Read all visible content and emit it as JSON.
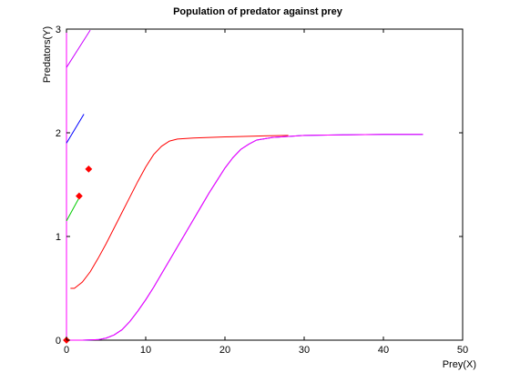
{
  "chart_data": {
    "type": "line",
    "title": "Population of predator against prey",
    "xlabel": "Prey(X)",
    "ylabel": "Predators(Y)",
    "xlim": [
      0,
      50
    ],
    "ylim": [
      0,
      3
    ],
    "xticks": [
      0,
      10,
      20,
      30,
      40,
      50
    ],
    "yticks": [
      0,
      1,
      2,
      3
    ],
    "grid": false,
    "series": [
      {
        "color": "#ff00ff",
        "points": [
          [
            0,
            0
          ],
          [
            0,
            3
          ]
        ]
      },
      {
        "color": "#ff0000",
        "points": [
          [
            0.5,
            0.5
          ],
          [
            1,
            0.5
          ],
          [
            2,
            0.56
          ],
          [
            3,
            0.66
          ],
          [
            4,
            0.79
          ],
          [
            5,
            0.93
          ],
          [
            6,
            1.08
          ],
          [
            7,
            1.23
          ],
          [
            8,
            1.38
          ],
          [
            9,
            1.53
          ],
          [
            10,
            1.67
          ],
          [
            11,
            1.79
          ],
          [
            12,
            1.87
          ],
          [
            13,
            1.92
          ],
          [
            14,
            1.94
          ],
          [
            16,
            1.95
          ],
          [
            20,
            1.96
          ],
          [
            25,
            1.97
          ],
          [
            28,
            1.975
          ]
        ]
      },
      {
        "color": "#0000ff",
        "points": [
          [
            0,
            0
          ],
          [
            2,
            0
          ],
          [
            4,
            0.005
          ],
          [
            5,
            0.02
          ],
          [
            6,
            0.05
          ],
          [
            7,
            0.1
          ],
          [
            8,
            0.18
          ],
          [
            9,
            0.28
          ],
          [
            10,
            0.39
          ],
          [
            11,
            0.51
          ],
          [
            12,
            0.64
          ],
          [
            13,
            0.77
          ],
          [
            14,
            0.9
          ],
          [
            15,
            1.03
          ],
          [
            16,
            1.16
          ],
          [
            17,
            1.29
          ],
          [
            18,
            1.42
          ],
          [
            19,
            1.54
          ],
          [
            20,
            1.66
          ],
          [
            21,
            1.76
          ],
          [
            22,
            1.84
          ],
          [
            23,
            1.89
          ],
          [
            24,
            1.93
          ],
          [
            26,
            1.955
          ],
          [
            28,
            1.965
          ],
          [
            30,
            1.975
          ],
          [
            35,
            1.98
          ],
          [
            40,
            1.985
          ],
          [
            45,
            1.985
          ]
        ]
      },
      {
        "color": "#ff00ff",
        "points": [
          [
            0,
            0
          ],
          [
            2,
            0
          ],
          [
            4,
            0.005
          ],
          [
            5,
            0.02
          ],
          [
            6,
            0.05
          ],
          [
            7,
            0.1
          ],
          [
            8,
            0.18
          ],
          [
            9,
            0.28
          ],
          [
            10,
            0.39
          ],
          [
            11,
            0.51
          ],
          [
            12,
            0.64
          ],
          [
            13,
            0.77
          ],
          [
            14,
            0.9
          ],
          [
            15,
            1.03
          ],
          [
            16,
            1.16
          ],
          [
            17,
            1.29
          ],
          [
            18,
            1.42
          ],
          [
            19,
            1.54
          ],
          [
            20,
            1.66
          ],
          [
            21,
            1.76
          ],
          [
            22,
            1.84
          ],
          [
            23,
            1.89
          ],
          [
            24,
            1.93
          ],
          [
            26,
            1.955
          ],
          [
            28,
            1.965
          ],
          [
            30,
            1.975
          ],
          [
            35,
            1.98
          ],
          [
            40,
            1.985
          ],
          [
            45,
            1.985
          ]
        ]
      },
      {
        "color": "#0000ff",
        "points": [
          [
            0,
            1.9
          ],
          [
            2.2,
            2.18
          ]
        ]
      },
      {
        "color": "#cc00ff",
        "points": [
          [
            0,
            2.63
          ],
          [
            3.0,
            2.99
          ]
        ]
      },
      {
        "color": "#00cc00",
        "points": [
          [
            0,
            1.15
          ],
          [
            1.5,
            1.36
          ]
        ]
      }
    ],
    "markers": [
      {
        "color": "#ff0000",
        "x": 0,
        "y": 0
      },
      {
        "color": "#ff0000",
        "x": 1.6,
        "y": 1.39
      },
      {
        "color": "#ff0000",
        "x": 2.8,
        "y": 1.65
      }
    ]
  }
}
